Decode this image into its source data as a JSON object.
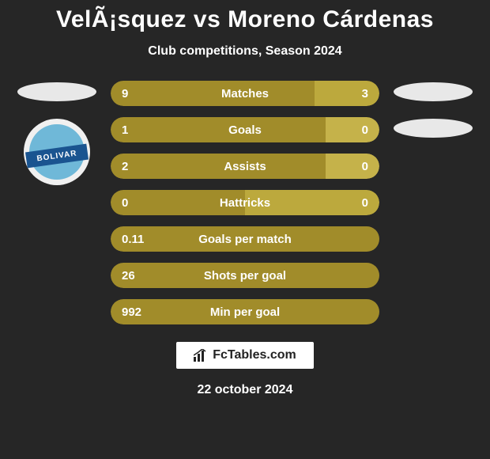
{
  "title": "VelÃ¡squez vs Moreno Cárdenas",
  "subtitle": "Club competitions, Season 2024",
  "colors": {
    "background": "#262626",
    "left_bar": "#a18c2a",
    "right_bar": "#bca93d",
    "right_bar_alt": "#c5b24a",
    "text": "#ffffff",
    "badge_bg": "#f0f0f0",
    "badge_inner": "#6fb8d8",
    "badge_ribbon": "#1a5490",
    "placeholder": "#e8e8e8",
    "footer_badge_bg": "#ffffff",
    "footer_badge_text": "#222222"
  },
  "badge_text": "BOLIVAR",
  "bars": [
    {
      "label": "Matches",
      "left_value": "9",
      "right_value": "3",
      "left_pct": 76,
      "left_color": "#a18c2a",
      "right_color": "#bca93d"
    },
    {
      "label": "Goals",
      "left_value": "1",
      "right_value": "0",
      "left_pct": 80,
      "left_color": "#a18c2a",
      "right_color": "#c5b24a"
    },
    {
      "label": "Assists",
      "left_value": "2",
      "right_value": "0",
      "left_pct": 80,
      "left_color": "#a18c2a",
      "right_color": "#c5b24a"
    },
    {
      "label": "Hattricks",
      "left_value": "0",
      "right_value": "0",
      "left_pct": 50,
      "left_color": "#a18c2a",
      "right_color": "#bca93d"
    },
    {
      "label": "Goals per match",
      "left_value": "0.11",
      "right_value": "",
      "left_pct": 100,
      "left_color": "#a18c2a",
      "right_color": "#a18c2a"
    },
    {
      "label": "Shots per goal",
      "left_value": "26",
      "right_value": "",
      "left_pct": 100,
      "left_color": "#a18c2a",
      "right_color": "#a18c2a"
    },
    {
      "label": "Min per goal",
      "left_value": "992",
      "right_value": "",
      "left_pct": 100,
      "left_color": "#a18c2a",
      "right_color": "#a18c2a"
    }
  ],
  "footer": {
    "brand": "FcTables.com",
    "date": "22 october 2024"
  }
}
